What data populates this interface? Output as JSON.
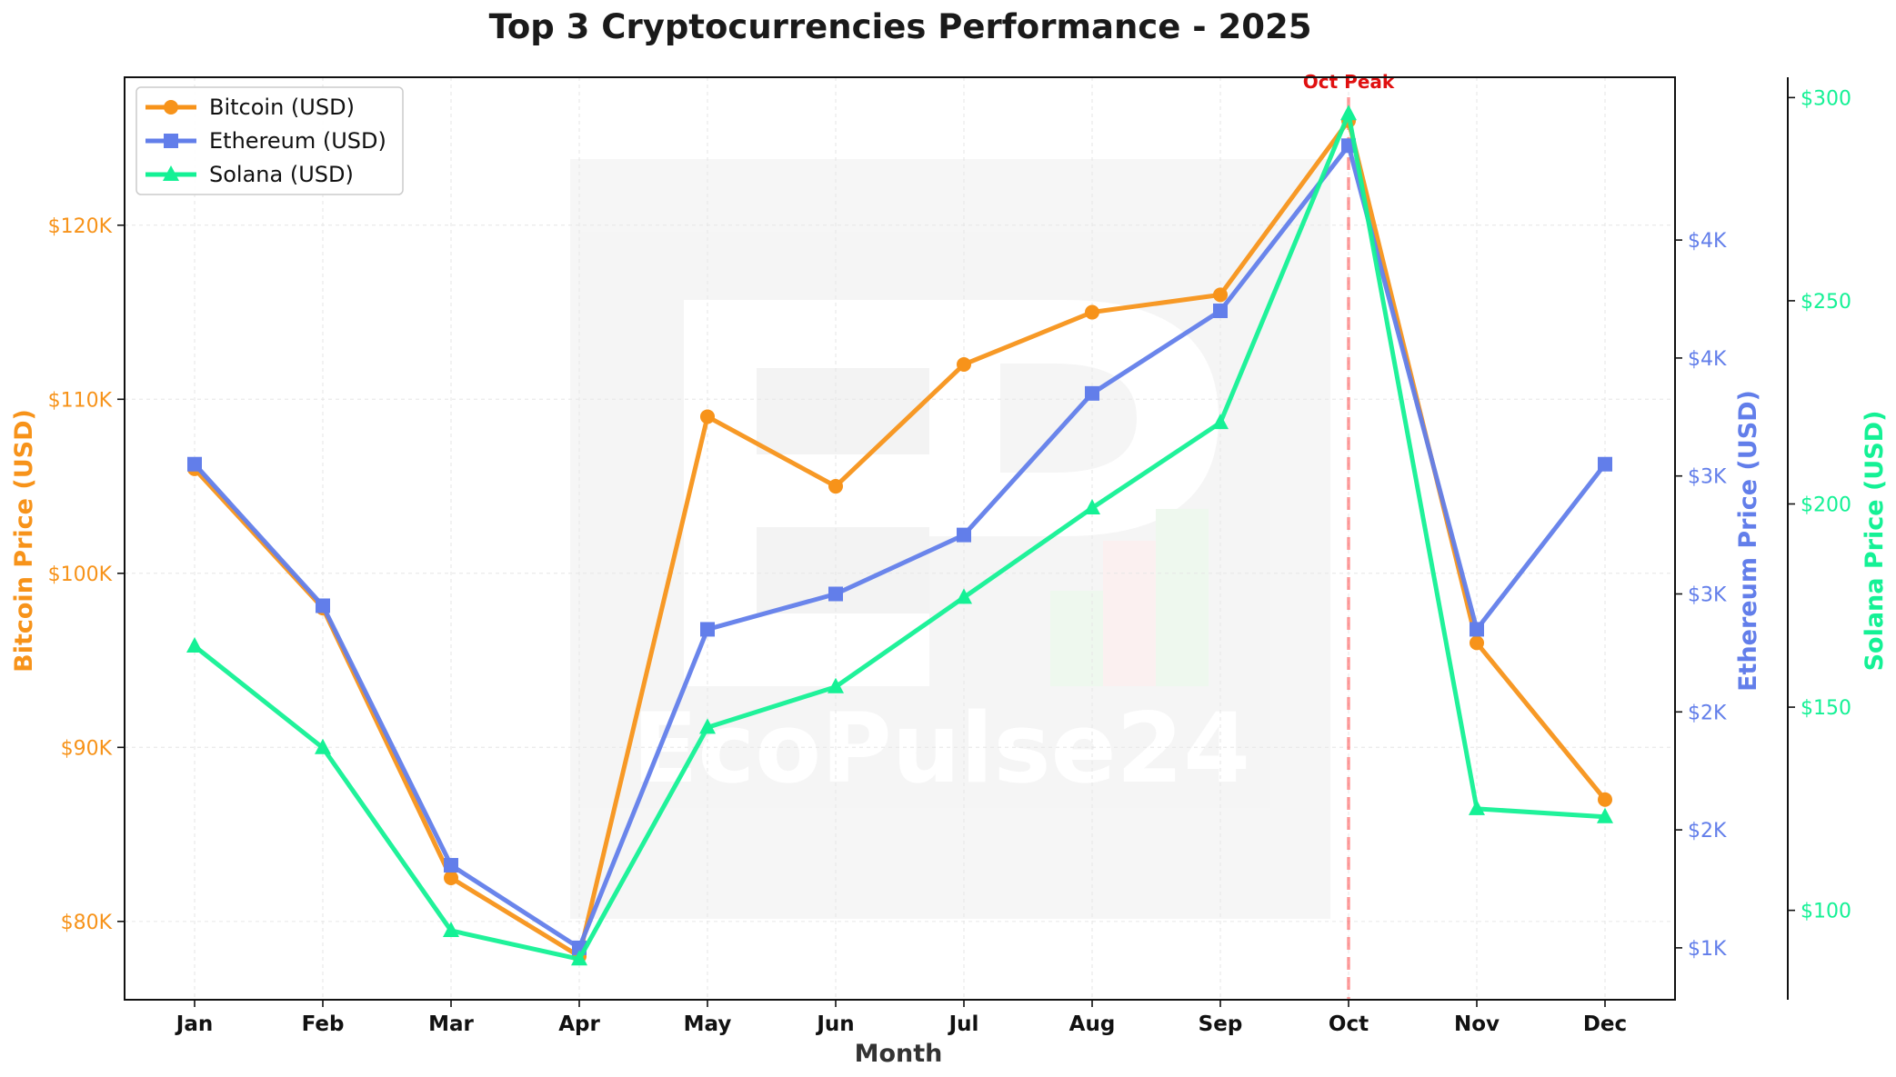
{
  "chart_data": {
    "type": "line",
    "title": "Top 3 Cryptocurrencies Performance - 2025",
    "xlabel": "Month",
    "categories": [
      "Jan",
      "Feb",
      "Mar",
      "Apr",
      "May",
      "Jun",
      "Jul",
      "Aug",
      "Sep",
      "Oct",
      "Nov",
      "Dec"
    ],
    "series": [
      {
        "name": "Bitcoin (USD)",
        "axis": "left",
        "color": "#f7931a",
        "marker": "circle",
        "values": [
          106000,
          98000,
          82500,
          78000,
          109000,
          105000,
          112000,
          115000,
          116000,
          126000,
          96000,
          87000
        ]
      },
      {
        "name": "Ethereum (USD)",
        "axis": "right1",
        "color": "#627eea",
        "marker": "square",
        "values": [
          3300,
          2700,
          1600,
          1250,
          2600,
          2750,
          3000,
          3600,
          3950,
          4650,
          2600,
          3300
        ]
      },
      {
        "name": "Solana (USD)",
        "axis": "right2",
        "color": "#14f195",
        "marker": "triangle",
        "values": [
          165,
          140,
          95,
          88,
          145,
          155,
          177,
          199,
          220,
          296,
          125,
          123
        ]
      }
    ],
    "axes": {
      "left": {
        "label": "Bitcoin Price (USD)",
        "color": "#f7931a",
        "ylim": [
          75500,
          128500
        ],
        "ticks": [
          {
            "value": 80000,
            "label": "$80K"
          },
          {
            "value": 90000,
            "label": "$90K"
          },
          {
            "value": 100000,
            "label": "$100K"
          },
          {
            "value": 110000,
            "label": "$110K"
          },
          {
            "value": 120000,
            "label": "$120K"
          }
        ]
      },
      "right1": {
        "label": "Ethereum Price (USD)",
        "color": "#627eea",
        "ylim": [
          1030,
          4940
        ],
        "ticks": [
          {
            "value": 1250,
            "label": "$1K"
          },
          {
            "value": 1750,
            "label": "$2K"
          },
          {
            "value": 2250,
            "label": "$2K"
          },
          {
            "value": 2750,
            "label": "$3K"
          },
          {
            "value": 3250,
            "label": "$3K"
          },
          {
            "value": 3750,
            "label": "$4K"
          },
          {
            "value": 4250,
            "label": "$4K"
          }
        ]
      },
      "right2": {
        "label": "Solana Price (USD)",
        "color": "#14f195",
        "ylim": [
          78,
          305
        ],
        "ticks": [
          {
            "value": 100,
            "label": "$100"
          },
          {
            "value": 150,
            "label": "$150"
          },
          {
            "value": 200,
            "label": "$200"
          },
          {
            "value": 250,
            "label": "$250"
          },
          {
            "value": 300,
            "label": "$300"
          }
        ]
      }
    },
    "annotation": {
      "label": "Oct Peak",
      "category": "Oct",
      "color": "#ff4d4d"
    },
    "watermark": {
      "text": "EcoPulse24"
    },
    "legend": "upper-left",
    "grid": true
  }
}
